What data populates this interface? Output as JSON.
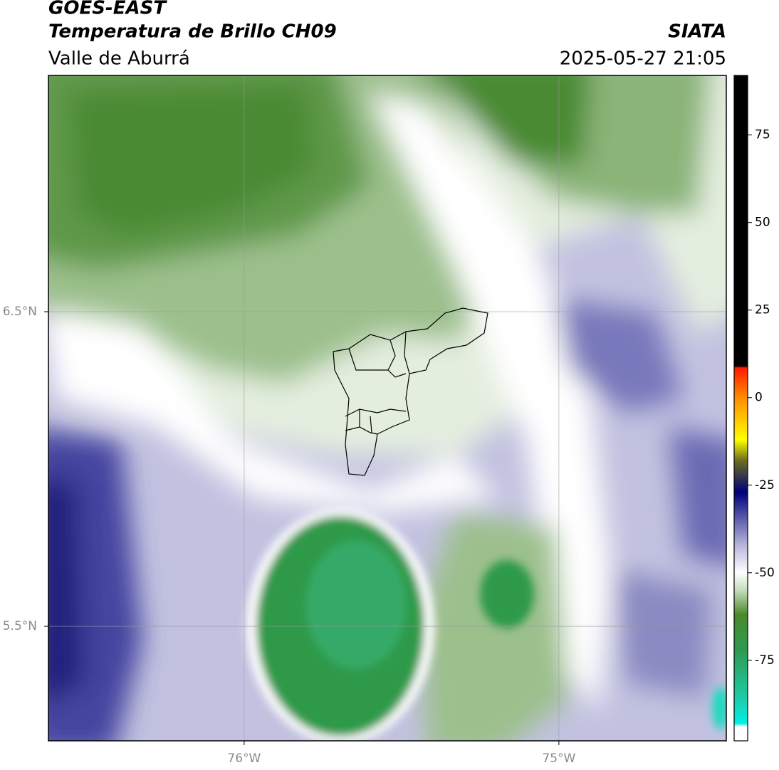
{
  "header": {
    "satellite": "GOES-EAST",
    "product": "Temperatura de Brillo CH09",
    "region": "Valle de Aburrá",
    "source": "SIATA",
    "datetime": "2025-05-27 21:05"
  },
  "map": {
    "lonlim": [
      -76.622,
      -74.468
    ],
    "latlim": [
      5.136,
      7.251
    ],
    "lonticks": [
      {
        "value": -76,
        "label": "76°W"
      },
      {
        "value": -75,
        "label": "75°W"
      }
    ],
    "latticks": [
      {
        "value": 6.5,
        "label": "6.5°N"
      },
      {
        "value": 5.5,
        "label": "5.5°N"
      }
    ],
    "grid": true
  },
  "colorbar": {
    "clim": [
      -98,
      92
    ],
    "ticks": [
      75,
      50,
      25,
      0,
      -25,
      -50,
      -75
    ],
    "colormap": [
      [
        92,
        "#000000"
      ],
      [
        9,
        "#000000"
      ],
      [
        8.5,
        "#ff1a00"
      ],
      [
        0,
        "#ff8c00"
      ],
      [
        -12,
        "#ffff00"
      ],
      [
        -18,
        "#6b6b20"
      ],
      [
        -27,
        "#00007a"
      ],
      [
        -33,
        "#4a4aa0"
      ],
      [
        -42,
        "#b4b4da"
      ],
      [
        -50,
        "#ffffff"
      ],
      [
        -55,
        "#c4dcbc"
      ],
      [
        -62,
        "#4a8a2a"
      ],
      [
        -72,
        "#2e9a50"
      ],
      [
        -85,
        "#20c8a0"
      ],
      [
        -93,
        "#00f0e8"
      ],
      [
        -94,
        "#ffffff"
      ],
      [
        -98,
        "#ffffff"
      ]
    ]
  }
}
